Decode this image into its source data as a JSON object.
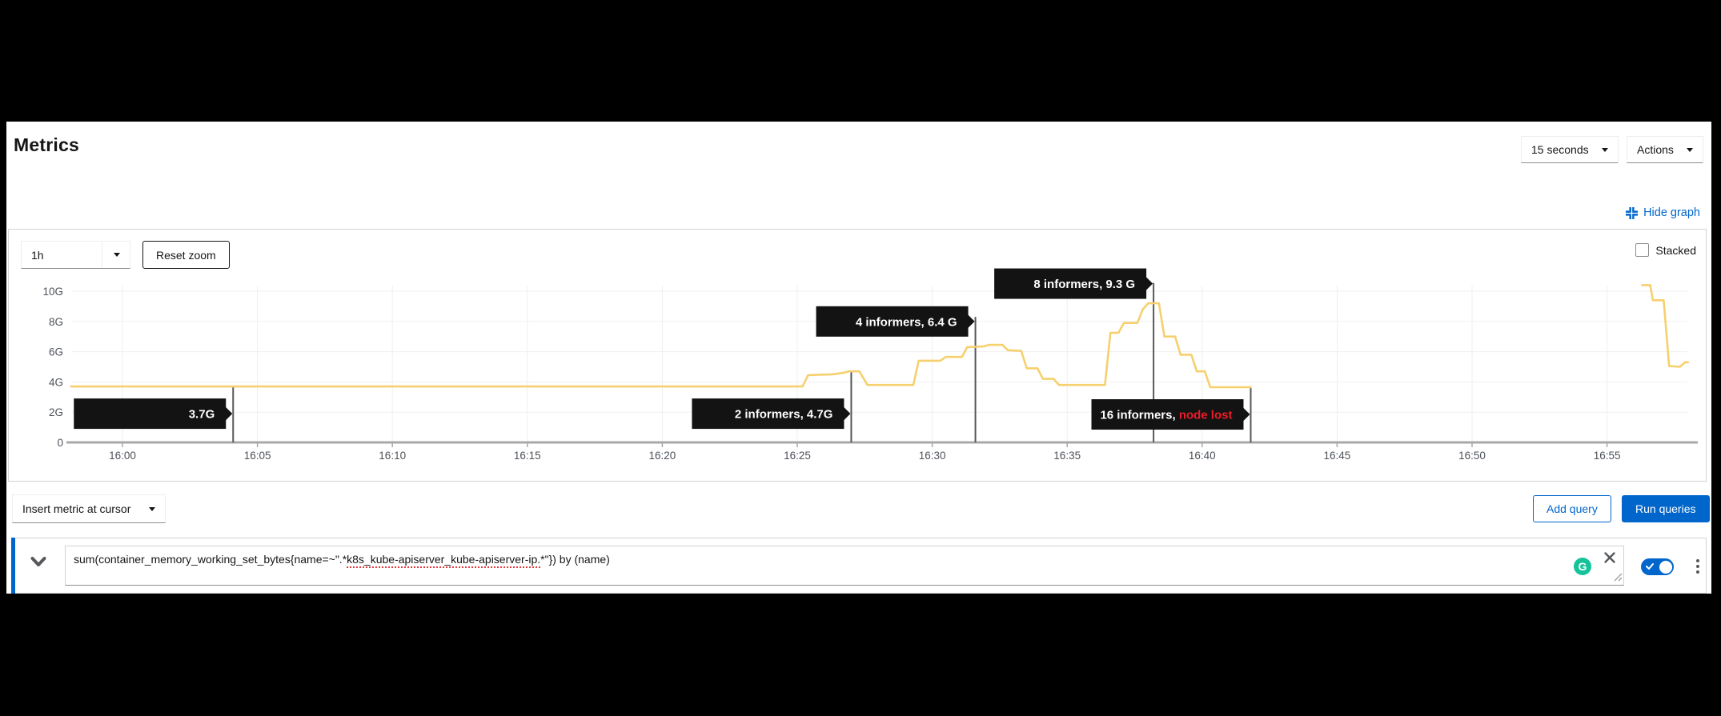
{
  "header": {
    "title": "Metrics",
    "refresh_interval": "15 seconds",
    "actions_label": "Actions",
    "hide_graph_label": "Hide graph"
  },
  "graph_controls": {
    "time_range": "1h",
    "reset_zoom_label": "Reset zoom",
    "stacked_label": "Stacked",
    "stacked_checked": false
  },
  "chart_data": {
    "type": "line",
    "title": "",
    "xlabel": "",
    "ylabel": "",
    "x_axis": {
      "tick_labels": [
        "16:00",
        "16:05",
        "16:10",
        "16:15",
        "16:20",
        "16:25",
        "16:30",
        "16:35",
        "16:40",
        "16:45",
        "16:50",
        "16:55"
      ],
      "tick_minutes": [
        0,
        5,
        10,
        15,
        20,
        25,
        30,
        35,
        40,
        45,
        50,
        55
      ],
      "window_minutes": [
        -1.9,
        58
      ]
    },
    "y_axis": {
      "tick_labels": [
        "0",
        "2G",
        "4G",
        "6G",
        "8G",
        "10G"
      ],
      "tick_values": [
        0,
        2,
        4,
        6,
        8,
        10
      ],
      "unit": "G",
      "ylim": [
        0,
        10.6
      ]
    },
    "grid": true,
    "legend": "none",
    "series": [
      {
        "name": "sum(container_memory_working_set_bytes) by (name)",
        "color": "#f6d06e",
        "unit": "G",
        "segments": [
          [
            [
              -1.9,
              3.7
            ],
            [
              25.2,
              3.7
            ],
            [
              25.4,
              4.45
            ],
            [
              26.3,
              4.5
            ],
            [
              26.7,
              4.6
            ],
            [
              26.9,
              4.7
            ],
            [
              27.3,
              4.7
            ],
            [
              27.6,
              3.8
            ],
            [
              29.3,
              3.8
            ],
            [
              29.5,
              5.4
            ],
            [
              30.3,
              5.4
            ],
            [
              30.5,
              5.65
            ],
            [
              31.1,
              5.65
            ],
            [
              31.3,
              6.3
            ],
            [
              31.9,
              6.35
            ],
            [
              32.1,
              6.45
            ],
            [
              32.6,
              6.45
            ],
            [
              32.8,
              6.1
            ],
            [
              33.3,
              6.05
            ],
            [
              33.5,
              4.9
            ],
            [
              33.9,
              4.9
            ],
            [
              34.1,
              4.2
            ],
            [
              34.5,
              4.2
            ],
            [
              34.7,
              3.8
            ],
            [
              36.4,
              3.8
            ],
            [
              36.6,
              7.25
            ],
            [
              36.9,
              7.25
            ],
            [
              37.1,
              7.9
            ],
            [
              37.6,
              7.9
            ],
            [
              37.8,
              8.8
            ],
            [
              38.0,
              9.2
            ],
            [
              38.4,
              9.2
            ],
            [
              38.6,
              7.0
            ],
            [
              39.0,
              7.0
            ],
            [
              39.2,
              5.8
            ],
            [
              39.6,
              5.8
            ],
            [
              39.8,
              4.7
            ],
            [
              40.1,
              4.7
            ],
            [
              40.3,
              3.65
            ],
            [
              41.8,
              3.65
            ]
          ],
          [
            [
              56.3,
              10.4
            ],
            [
              56.6,
              10.4
            ],
            [
              56.7,
              9.4
            ],
            [
              57.1,
              9.4
            ],
            [
              57.3,
              5.05
            ],
            [
              57.7,
              5.0
            ],
            [
              57.9,
              5.3
            ],
            [
              58.0,
              5.3
            ]
          ]
        ]
      }
    ],
    "annotations": [
      {
        "t": 4.1,
        "text": "3.7G",
        "red_text": "",
        "box_center_g": 1.9,
        "line_top_g": 3.7
      },
      {
        "t": 27.0,
        "text": "2 informers, 4.7G",
        "red_text": "",
        "box_center_g": 1.9,
        "line_top_g": 4.7
      },
      {
        "t": 31.6,
        "text": "4 informers, 6.4 G",
        "red_text": "",
        "box_center_g": 8.0,
        "line_top_g": 8.3
      },
      {
        "t": 38.2,
        "text": "8 informers, 9.3 G",
        "red_text": "",
        "box_center_g": 10.5,
        "line_top_g": 10.55
      },
      {
        "t": 41.8,
        "text": "16 informers, ",
        "red_text": "node lost",
        "box_center_g": 1.85,
        "line_top_g": 3.65
      }
    ],
    "colors": {
      "line": "#f6d06e",
      "grid": "#efefef",
      "axis_line": "#a8a8a8",
      "tick_text": "#4d5258",
      "event_line": "#56585c",
      "annotation_bg": "#131313",
      "annotation_text": "#ffffff",
      "annotation_red": "#ed1b29"
    }
  },
  "query_controls": {
    "insert_metric_label": "Insert metric at cursor",
    "add_query_label": "Add query",
    "run_queries_label": "Run queries"
  },
  "query_row": {
    "expression_prefix": "sum(container_memory_working_set_bytes{name=~\".*",
    "expression_underlined": "k8s_kube-apiserver_kube-apiserver-ip.",
    "expression_suffix": "*\"}) by (name)",
    "grammarly_glyph": "G",
    "enabled": true
  },
  "accent_colors": {
    "primary_blue": "#0066cc",
    "grammarly_green": "#15c39a"
  }
}
